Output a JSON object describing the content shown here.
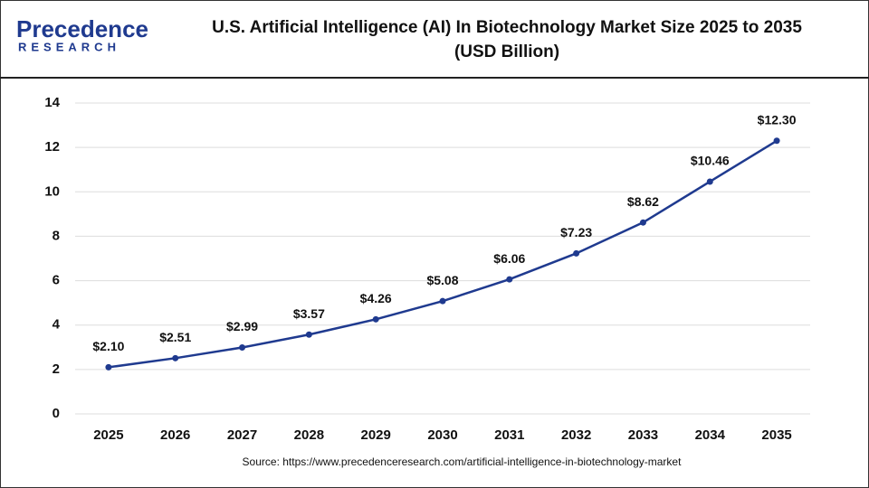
{
  "logo": {
    "name": "Precedence",
    "tagline": "RESEARCH"
  },
  "chart_data": {
    "type": "line",
    "title": "U.S. Artificial Intelligence (AI) In Biotechnology Market Size 2025 to 2035",
    "subtitle": "(USD Billion)",
    "categories": [
      "2025",
      "2026",
      "2027",
      "2028",
      "2029",
      "2030",
      "2031",
      "2032",
      "2033",
      "2034",
      "2035"
    ],
    "values": [
      2.1,
      2.51,
      2.99,
      3.57,
      4.26,
      5.08,
      6.06,
      7.23,
      8.62,
      10.46,
      12.3
    ],
    "value_labels": [
      "$2.10",
      "$2.51",
      "$2.99",
      "$3.57",
      "$4.26",
      "$5.08",
      "$6.06",
      "$7.23",
      "$8.62",
      "$10.46",
      "$12.30"
    ],
    "color": "#1f3a8f",
    "ylim": [
      0,
      14
    ],
    "yticks": [
      0,
      2,
      4,
      6,
      8,
      10,
      12,
      14
    ],
    "grid": true,
    "source": "Source: https://www.precedenceresearch.com/artificial-intelligence-in-biotechnology-market"
  }
}
